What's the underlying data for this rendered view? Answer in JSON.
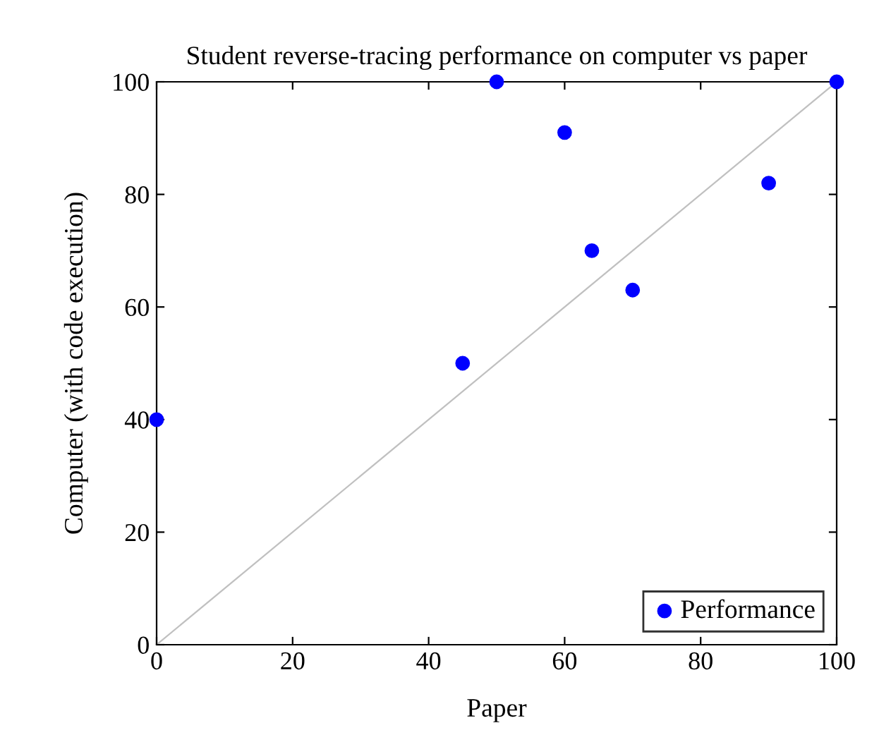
{
  "chart_data": {
    "type": "scatter",
    "title": "Student reverse-tracing performance on computer vs paper",
    "xlabel": "Paper",
    "ylabel": "Computer (with code execution)",
    "series": [
      {
        "name": "Performance",
        "color": "#0000ff",
        "x": [
          0,
          45,
          50,
          60,
          64,
          70,
          90,
          100
        ],
        "values": [
          40,
          50,
          100,
          91,
          70,
          63,
          82,
          100
        ],
        "marker": "circle"
      },
      {
        "type": "line",
        "color": "#c0c0c0",
        "x": [
          0,
          100
        ],
        "values": [
          0,
          100
        ],
        "marker": "none"
      }
    ],
    "xlim": [
      0,
      100
    ],
    "ylim": [
      0,
      100
    ],
    "xticks": [
      0,
      20,
      40,
      60,
      80,
      100
    ],
    "yticks": [
      0,
      20,
      40,
      60,
      80,
      100
    ],
    "grid": false,
    "legend": "bottom right"
  }
}
